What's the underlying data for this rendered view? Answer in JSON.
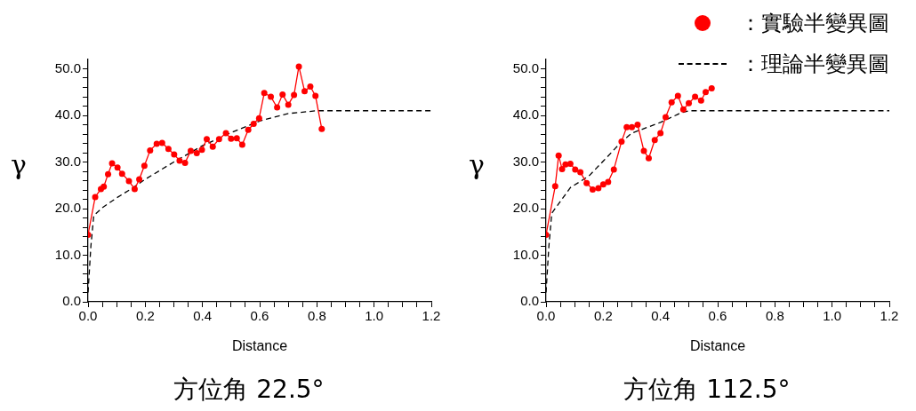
{
  "chart_data": [
    {
      "type": "line",
      "title": "方位角 22.5°",
      "xlabel": "Distance",
      "ylabel": "γ",
      "xlim": [
        0,
        1.2
      ],
      "ylim": [
        0,
        52
      ],
      "xticks": [
        {
          "value": 0,
          "label": "0.0"
        },
        {
          "value": 0.05,
          "label": null
        },
        {
          "value": 0.1,
          "label": null
        },
        {
          "value": 0.15,
          "label": null
        },
        {
          "value": 0.2,
          "label": "0.2"
        },
        {
          "value": 0.25,
          "label": null
        },
        {
          "value": 0.3,
          "label": null
        },
        {
          "value": 0.35,
          "label": null
        },
        {
          "value": 0.4,
          "label": "0.4"
        },
        {
          "value": 0.45,
          "label": null
        },
        {
          "value": 0.5,
          "label": null
        },
        {
          "value": 0.55,
          "label": null
        },
        {
          "value": 0.6,
          "label": "0.6"
        },
        {
          "value": 0.65,
          "label": null
        },
        {
          "value": 0.7,
          "label": null
        },
        {
          "value": 0.75,
          "label": null
        },
        {
          "value": 0.8,
          "label": "0.8"
        },
        {
          "value": 0.85,
          "label": null
        },
        {
          "value": 0.9,
          "label": null
        },
        {
          "value": 0.95,
          "label": null
        },
        {
          "value": 1,
          "label": "1.0"
        },
        {
          "value": 1.05,
          "label": null
        },
        {
          "value": 1.1,
          "label": null
        },
        {
          "value": 1.15,
          "label": null
        },
        {
          "value": 1.2,
          "label": "1.2"
        }
      ],
      "yticks": [
        {
          "value": 0,
          "label": "0.0"
        },
        {
          "value": 2,
          "label": null
        },
        {
          "value": 4,
          "label": null
        },
        {
          "value": 6,
          "label": null
        },
        {
          "value": 8,
          "label": null
        },
        {
          "value": 10,
          "label": "10.0"
        },
        {
          "value": 12,
          "label": null
        },
        {
          "value": 14,
          "label": null
        },
        {
          "value": 16,
          "label": null
        },
        {
          "value": 18,
          "label": null
        },
        {
          "value": 20,
          "label": "20.0"
        },
        {
          "value": 22,
          "label": null
        },
        {
          "value": 24,
          "label": null
        },
        {
          "value": 26,
          "label": null
        },
        {
          "value": 28,
          "label": null
        },
        {
          "value": 30,
          "label": "30.0"
        },
        {
          "value": 32,
          "label": null
        },
        {
          "value": 34,
          "label": null
        },
        {
          "value": 36,
          "label": null
        },
        {
          "value": 38,
          "label": null
        },
        {
          "value": 40,
          "label": "40.0"
        },
        {
          "value": 42,
          "label": null
        },
        {
          "value": 44,
          "label": null
        },
        {
          "value": 46,
          "label": null
        },
        {
          "value": 48,
          "label": null
        },
        {
          "value": 50,
          "label": "50.0"
        }
      ],
      "series": [
        {
          "type": "line",
          "color": "#ff0000",
          "marker": "circle",
          "line_style": "solid",
          "x": [
            0,
            0.025,
            0.045,
            0.055,
            0.07,
            0.084,
            0.103,
            0.119,
            0.143,
            0.163,
            0.179,
            0.197,
            0.217,
            0.24,
            0.259,
            0.281,
            0.301,
            0.32,
            0.339,
            0.359,
            0.38,
            0.398,
            0.415,
            0.436,
            0.458,
            0.482,
            0.5,
            0.52,
            0.539,
            0.56,
            0.579,
            0.598,
            0.616,
            0.639,
            0.661,
            0.68,
            0.7,
            0.72,
            0.737,
            0.757,
            0.777,
            0.795,
            0.817
          ],
          "values": [
            14.4,
            22.5,
            24.2,
            24.7,
            27.4,
            29.7,
            28.8,
            27.5,
            25.9,
            24.2,
            26.3,
            29.2,
            32.5,
            33.9,
            34.1,
            32.8,
            31.6,
            30.3,
            29.8,
            32.4,
            31.9,
            32.6,
            34.9,
            33.3,
            34.9,
            36.2,
            35,
            35.1,
            33.7,
            36.9,
            38.2,
            39.4,
            44.8,
            44,
            41.7,
            44.5,
            42.3,
            44.4,
            50.5,
            45.2,
            46.2,
            44.2,
            37.1
          ]
        },
        {
          "type": "line",
          "color": "#000000",
          "marker": "none",
          "line_style": "dashed",
          "x": [
            0,
            0.01,
            0.02,
            0.05,
            0.1,
            0.15,
            0.2,
            0.3,
            0.4,
            0.5,
            0.6,
            0.7,
            0.8,
            1.2
          ],
          "values": [
            2,
            12,
            18.5,
            20.2,
            22.3,
            24.2,
            26.3,
            30,
            33.5,
            36.3,
            38.8,
            40.4,
            41,
            41
          ]
        }
      ]
    },
    {
      "type": "line",
      "title": "方位角 112.5°",
      "xlabel": "Distance",
      "ylabel": "γ",
      "xlim": [
        0,
        1.2
      ],
      "ylim": [
        0,
        52
      ],
      "legend": "top right",
      "xticks": [
        {
          "value": 0,
          "label": "0.0"
        },
        {
          "value": 0.05,
          "label": null
        },
        {
          "value": 0.1,
          "label": null
        },
        {
          "value": 0.15,
          "label": null
        },
        {
          "value": 0.2,
          "label": "0.2"
        },
        {
          "value": 0.25,
          "label": null
        },
        {
          "value": 0.3,
          "label": null
        },
        {
          "value": 0.35,
          "label": null
        },
        {
          "value": 0.4,
          "label": "0.4"
        },
        {
          "value": 0.45,
          "label": null
        },
        {
          "value": 0.5,
          "label": null
        },
        {
          "value": 0.55,
          "label": null
        },
        {
          "value": 0.6,
          "label": "0.6"
        },
        {
          "value": 0.65,
          "label": null
        },
        {
          "value": 0.7,
          "label": null
        },
        {
          "value": 0.75,
          "label": null
        },
        {
          "value": 0.8,
          "label": "0.8"
        },
        {
          "value": 0.85,
          "label": null
        },
        {
          "value": 0.9,
          "label": null
        },
        {
          "value": 0.95,
          "label": null
        },
        {
          "value": 1,
          "label": "1.0"
        },
        {
          "value": 1.05,
          "label": null
        },
        {
          "value": 1.1,
          "label": null
        },
        {
          "value": 1.15,
          "label": null
        },
        {
          "value": 1.2,
          "label": "1.2"
        }
      ],
      "yticks": [
        {
          "value": 0,
          "label": "0.0"
        },
        {
          "value": 2,
          "label": null
        },
        {
          "value": 4,
          "label": null
        },
        {
          "value": 6,
          "label": null
        },
        {
          "value": 8,
          "label": null
        },
        {
          "value": 10,
          "label": "10.0"
        },
        {
          "value": 12,
          "label": null
        },
        {
          "value": 14,
          "label": null
        },
        {
          "value": 16,
          "label": null
        },
        {
          "value": 18,
          "label": null
        },
        {
          "value": 20,
          "label": "20.0"
        },
        {
          "value": 22,
          "label": null
        },
        {
          "value": 24,
          "label": null
        },
        {
          "value": 26,
          "label": null
        },
        {
          "value": 28,
          "label": null
        },
        {
          "value": 30,
          "label": "30.0"
        },
        {
          "value": 32,
          "label": null
        },
        {
          "value": 34,
          "label": null
        },
        {
          "value": 36,
          "label": null
        },
        {
          "value": 38,
          "label": null
        },
        {
          "value": 40,
          "label": "40.0"
        },
        {
          "value": 42,
          "label": null
        },
        {
          "value": 44,
          "label": null
        },
        {
          "value": 46,
          "label": null
        },
        {
          "value": 48,
          "label": null
        },
        {
          "value": 50,
          "label": "50.0"
        }
      ],
      "series": [
        {
          "type": "line",
          "name": "：實驗半變異圖",
          "color": "#ff0000",
          "marker": "circle",
          "line_style": "solid",
          "x": [
            0,
            0.032,
            0.044,
            0.056,
            0.068,
            0.085,
            0.102,
            0.12,
            0.142,
            0.163,
            0.183,
            0.2,
            0.217,
            0.237,
            0.264,
            0.282,
            0.3,
            0.32,
            0.342,
            0.359,
            0.38,
            0.4,
            0.418,
            0.439,
            0.461,
            0.48,
            0.499,
            0.521,
            0.542,
            0.558,
            0.579
          ],
          "values": [
            14.4,
            24.8,
            31.4,
            28.5,
            29.5,
            29.6,
            28.4,
            27.8,
            25.5,
            24.1,
            24.4,
            25.2,
            25.7,
            28.4,
            34.4,
            37.5,
            37.5,
            38,
            32.4,
            30.8,
            34.7,
            36.2,
            39.6,
            42.8,
            44.2,
            41.3,
            42.6,
            44,
            43.2,
            45,
            45.8
          ]
        },
        {
          "type": "line",
          "name": "：理論半變異圖",
          "color": "#000000",
          "marker": "none",
          "line_style": "dashed",
          "x": [
            0,
            0.01,
            0.02,
            0.04,
            0.085,
            0.15,
            0.2,
            0.265,
            0.3,
            0.4,
            0.47,
            0.5,
            1.2
          ],
          "values": [
            2,
            12,
            19,
            20.7,
            24.5,
            27,
            30.2,
            34.4,
            36.2,
            38.5,
            40.5,
            41,
            41
          ]
        }
      ]
    }
  ]
}
